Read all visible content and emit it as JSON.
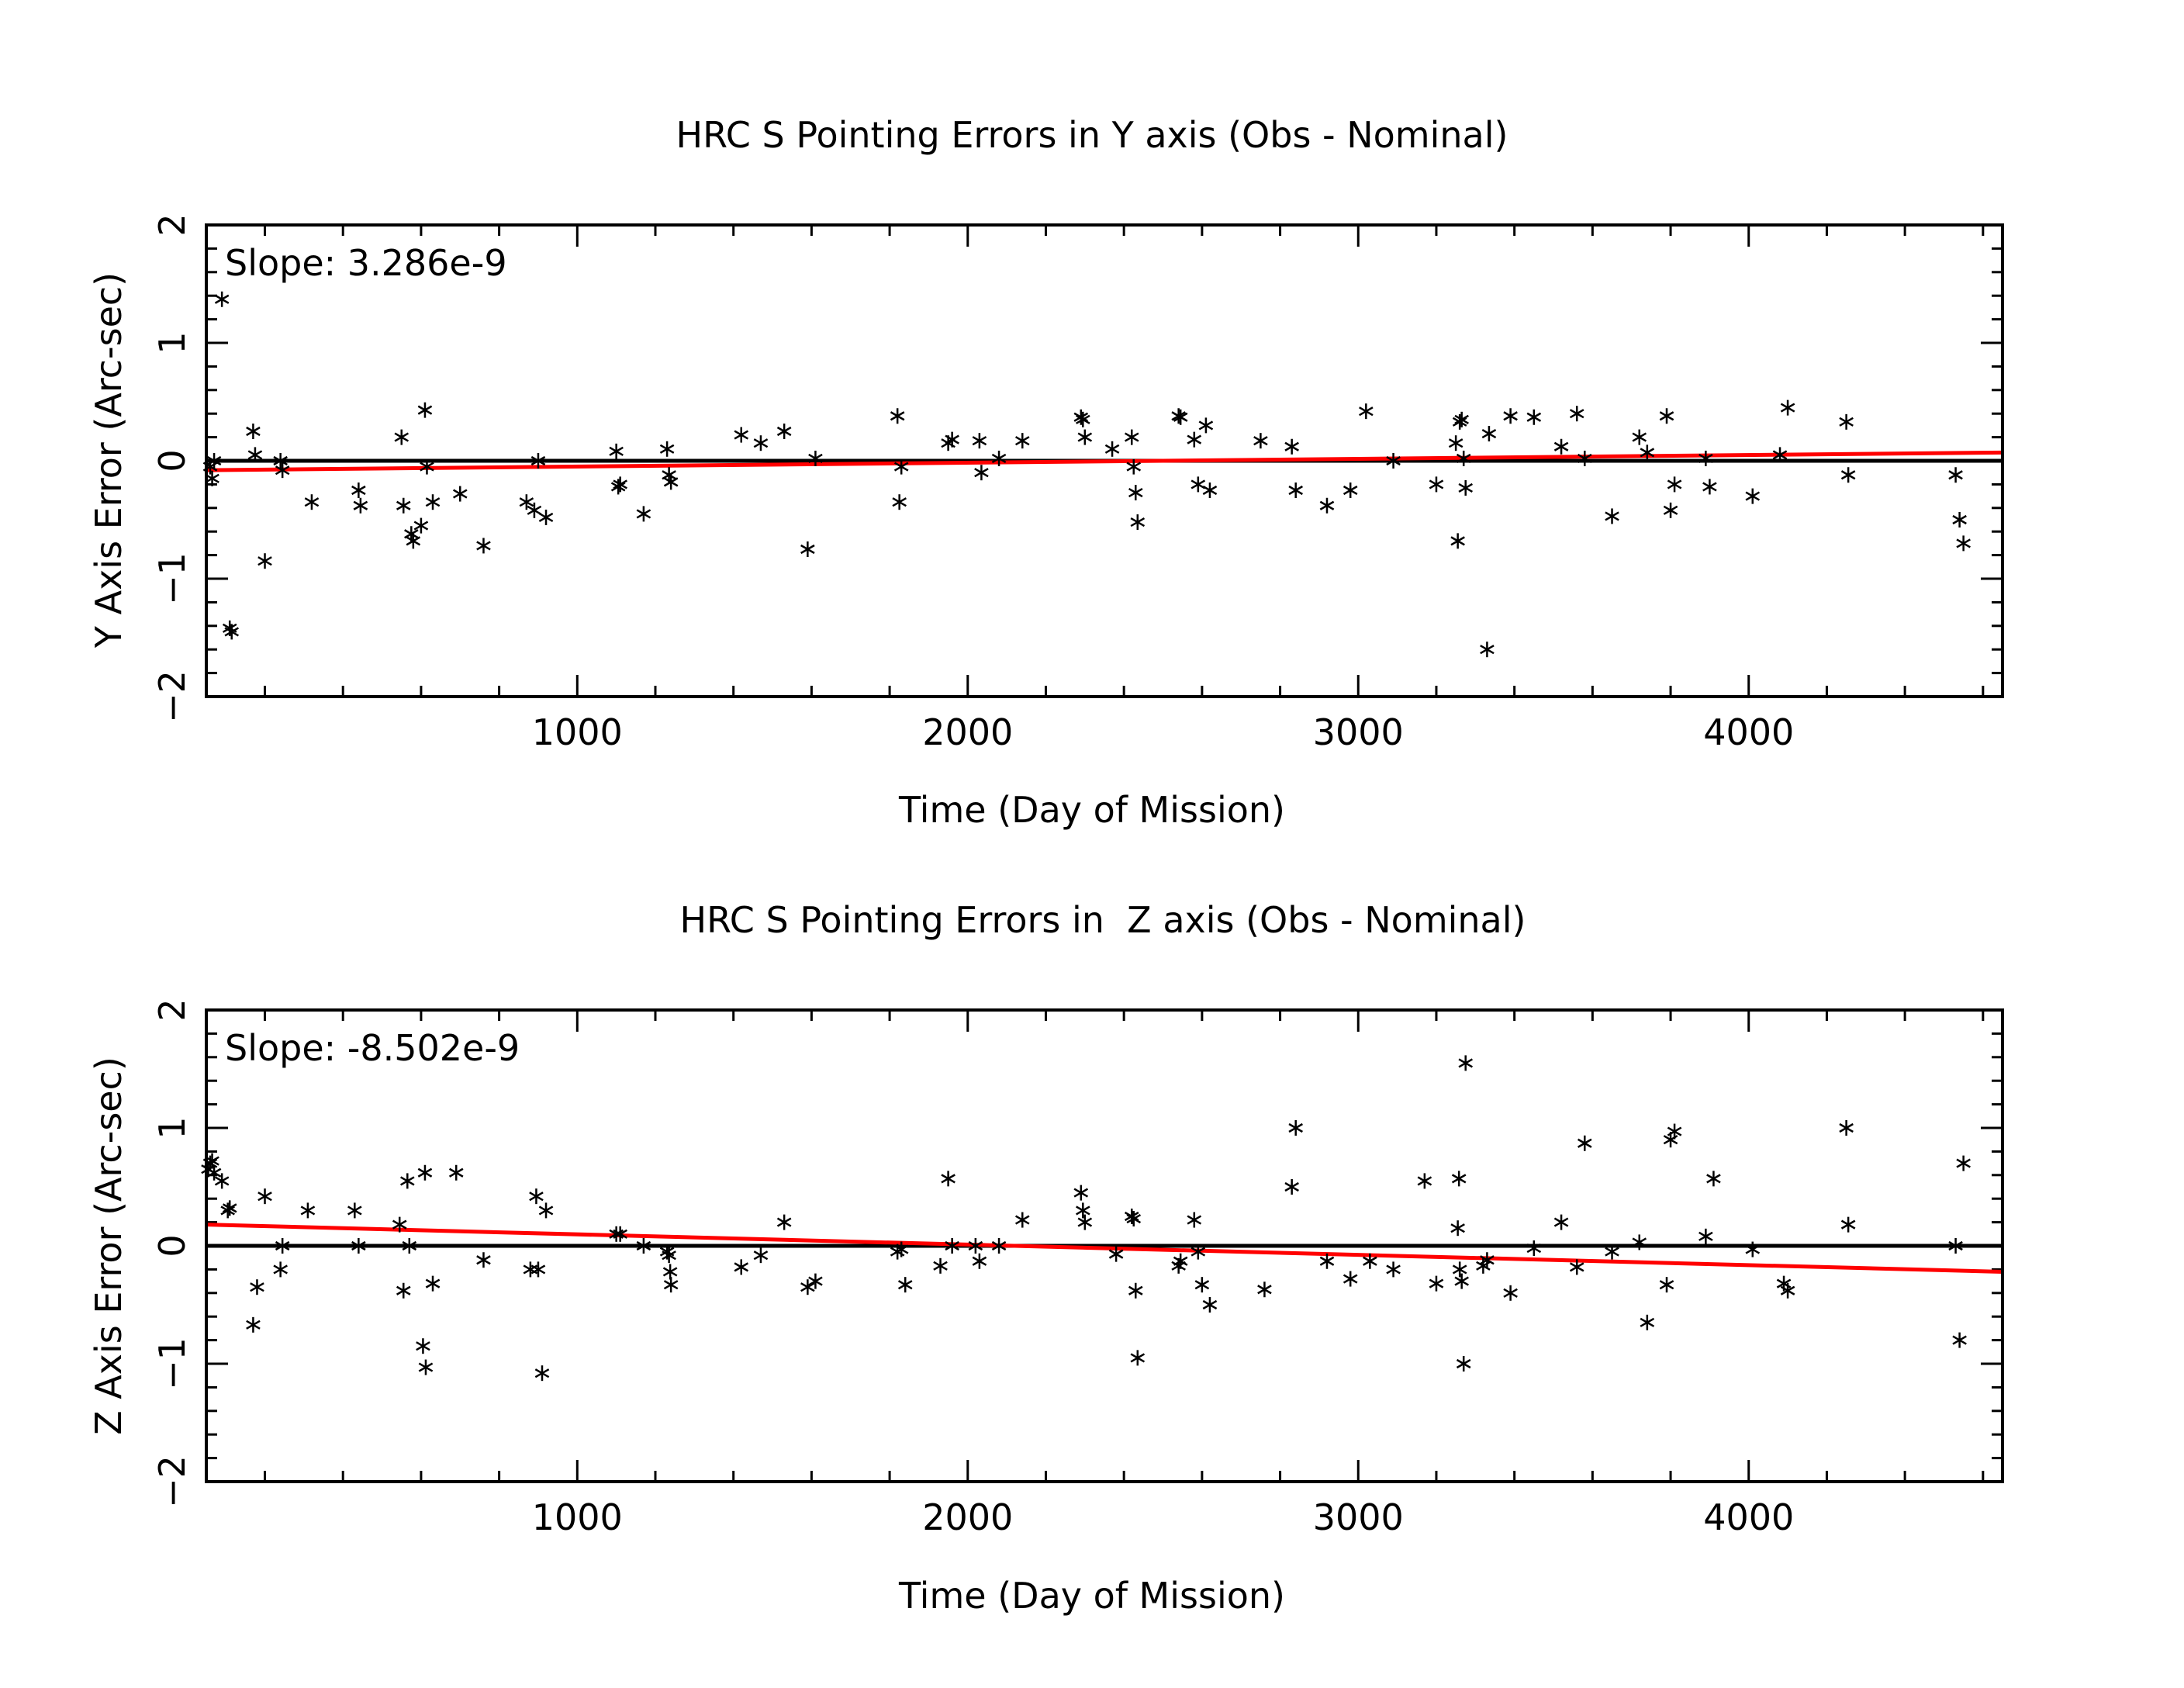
{
  "chart_data": [
    {
      "type": "scatter",
      "title": "HRC S Pointing Errors in Y axis (Obs - Nominal)",
      "xlabel": "Time (Day of Mission)",
      "ylabel": "Y Axis Error (Arc-sec)",
      "xlim": [
        50,
        4650
      ],
      "ylim": [
        -2,
        2
      ],
      "xticks": [
        1000,
        2000,
        3000,
        4000
      ],
      "yticks": [
        -2,
        -1,
        0,
        1,
        2
      ],
      "annotation": "Slope: 3.286e-9",
      "fit_line": {
        "x": [
          50,
          4650
        ],
        "y": [
          -0.08,
          0.07
        ],
        "color": "#ff0000"
      },
      "zero_line": {
        "y": 0,
        "color": "#000000"
      },
      "grid": false,
      "marker": "*",
      "points": {
        "x": [
          60,
          65,
          70,
          90,
          110,
          115,
          170,
          175,
          200,
          240,
          245,
          320,
          440,
          445,
          550,
          555,
          575,
          580,
          600,
          610,
          615,
          630,
          700,
          760,
          870,
          890,
          900,
          920,
          1100,
          1105,
          1110,
          1170,
          1230,
          1235,
          1240,
          1420,
          1470,
          1530,
          1590,
          1610,
          1820,
          1825,
          1830,
          1950,
          1960,
          2030,
          2035,
          2080,
          2140,
          2290,
          2295,
          2300,
          2370,
          2420,
          2425,
          2430,
          2435,
          2540,
          2545,
          2580,
          2590,
          2610,
          2620,
          2750,
          2830,
          2840,
          2920,
          2980,
          3020,
          3090,
          3200,
          3250,
          3255,
          3260,
          3265,
          3270,
          3275,
          3330,
          3335,
          3390,
          3450,
          3520,
          3560,
          3580,
          3650,
          3720,
          3740,
          3790,
          3800,
          3810,
          3890,
          3900,
          4010,
          4080,
          4100,
          4250,
          4255,
          4530,
          4540,
          4550
        ],
        "y": [
          -0.05,
          -0.15,
          0.0,
          1.37,
          -1.42,
          -1.45,
          0.25,
          0.05,
          -0.85,
          0.0,
          -0.08,
          -0.35,
          -0.25,
          -0.38,
          0.2,
          -0.38,
          -0.62,
          -0.68,
          -0.55,
          0.43,
          -0.05,
          -0.35,
          -0.28,
          -0.72,
          -0.35,
          -0.42,
          0.0,
          -0.48,
          0.08,
          -0.22,
          -0.2,
          -0.45,
          0.1,
          -0.12,
          -0.18,
          0.22,
          0.15,
          0.25,
          -0.75,
          0.02,
          0.38,
          -0.35,
          -0.05,
          0.15,
          0.18,
          0.17,
          -0.1,
          0.02,
          0.17,
          0.37,
          0.35,
          0.2,
          0.1,
          0.2,
          -0.05,
          -0.27,
          -0.52,
          0.38,
          0.37,
          0.18,
          -0.2,
          0.3,
          -0.25,
          0.17,
          0.12,
          -0.25,
          -0.38,
          -0.25,
          0.42,
          0.0,
          -0.2,
          0.15,
          -0.68,
          0.33,
          0.35,
          0.02,
          -0.23,
          -1.6,
          0.23,
          0.38,
          0.37,
          0.12,
          0.4,
          0.02,
          -0.47,
          0.2,
          0.07,
          0.38,
          -0.42,
          -0.2,
          0.02,
          -0.22,
          -0.3,
          0.05,
          0.45,
          0.33,
          -0.12,
          -0.12,
          -0.5,
          -0.7
        ]
      }
    },
    {
      "type": "scatter",
      "title": "HRC S Pointing Errors in  Z axis (Obs - Nominal)",
      "xlabel": "Time (Day of Mission)",
      "ylabel": "Z Axis Error (Arc-sec)",
      "xlim": [
        50,
        4650
      ],
      "ylim": [
        -2,
        2
      ],
      "xticks": [
        1000,
        2000,
        3000,
        4000
      ],
      "yticks": [
        -2,
        -1,
        0,
        1,
        2
      ],
      "annotation": "Slope: -8.502e-9",
      "fit_line": {
        "x": [
          50,
          4650
        ],
        "y": [
          0.18,
          -0.22
        ],
        "color": "#ff0000"
      },
      "zero_line": {
        "y": 0,
        "color": "#000000"
      },
      "grid": false,
      "marker": "*",
      "points": {
        "x": [
          55,
          60,
          65,
          70,
          90,
          105,
          110,
          170,
          180,
          200,
          240,
          245,
          310,
          430,
          440,
          545,
          555,
          565,
          570,
          605,
          610,
          612,
          630,
          690,
          760,
          880,
          895,
          900,
          910,
          920,
          1100,
          1110,
          1170,
          1230,
          1235,
          1238,
          1240,
          1420,
          1470,
          1530,
          1590,
          1610,
          1820,
          1830,
          1840,
          1930,
          1950,
          1960,
          2020,
          2030,
          2080,
          2140,
          2290,
          2295,
          2300,
          2380,
          2420,
          2425,
          2430,
          2435,
          2540,
          2545,
          2580,
          2590,
          2600,
          2620,
          2760,
          2830,
          2840,
          2920,
          2980,
          3030,
          3090,
          3170,
          3200,
          3255,
          3258,
          3260,
          3265,
          3270,
          3275,
          3320,
          3330,
          3390,
          3450,
          3520,
          3560,
          3580,
          3650,
          3720,
          3740,
          3790,
          3800,
          3810,
          3890,
          3910,
          4010,
          4090,
          4100,
          4250,
          4255,
          4530,
          4540,
          4550
        ],
        "y": [
          0.65,
          0.7,
          0.72,
          0.62,
          0.55,
          0.3,
          0.32,
          -0.67,
          -0.35,
          0.42,
          -0.2,
          0.0,
          0.3,
          0.3,
          0.0,
          0.18,
          -0.38,
          0.55,
          0.0,
          -0.85,
          0.62,
          -1.03,
          -0.32,
          0.62,
          -0.12,
          -0.2,
          0.42,
          -0.2,
          -1.08,
          0.3,
          0.1,
          0.1,
          0.0,
          -0.05,
          -0.08,
          -0.22,
          -0.33,
          -0.18,
          -0.08,
          0.2,
          -0.35,
          -0.3,
          -0.05,
          -0.03,
          -0.33,
          -0.17,
          0.57,
          0.0,
          0.0,
          -0.13,
          0.0,
          0.22,
          0.45,
          0.3,
          0.2,
          -0.07,
          0.25,
          0.23,
          -0.38,
          -0.95,
          -0.17,
          -0.13,
          0.22,
          -0.05,
          -0.33,
          -0.5,
          -0.37,
          0.5,
          1.0,
          -0.13,
          -0.28,
          -0.13,
          -0.2,
          0.55,
          -0.32,
          0.15,
          0.57,
          -0.2,
          -0.3,
          -1.0,
          1.55,
          -0.17,
          -0.12,
          -0.4,
          -0.02,
          0.2,
          -0.18,
          0.87,
          -0.05,
          0.03,
          -0.65,
          -0.33,
          0.9,
          0.97,
          0.08,
          0.57,
          -0.03,
          -0.32,
          -0.38,
          1.0,
          0.18,
          0.0,
          -0.8,
          0.7
        ]
      }
    }
  ]
}
